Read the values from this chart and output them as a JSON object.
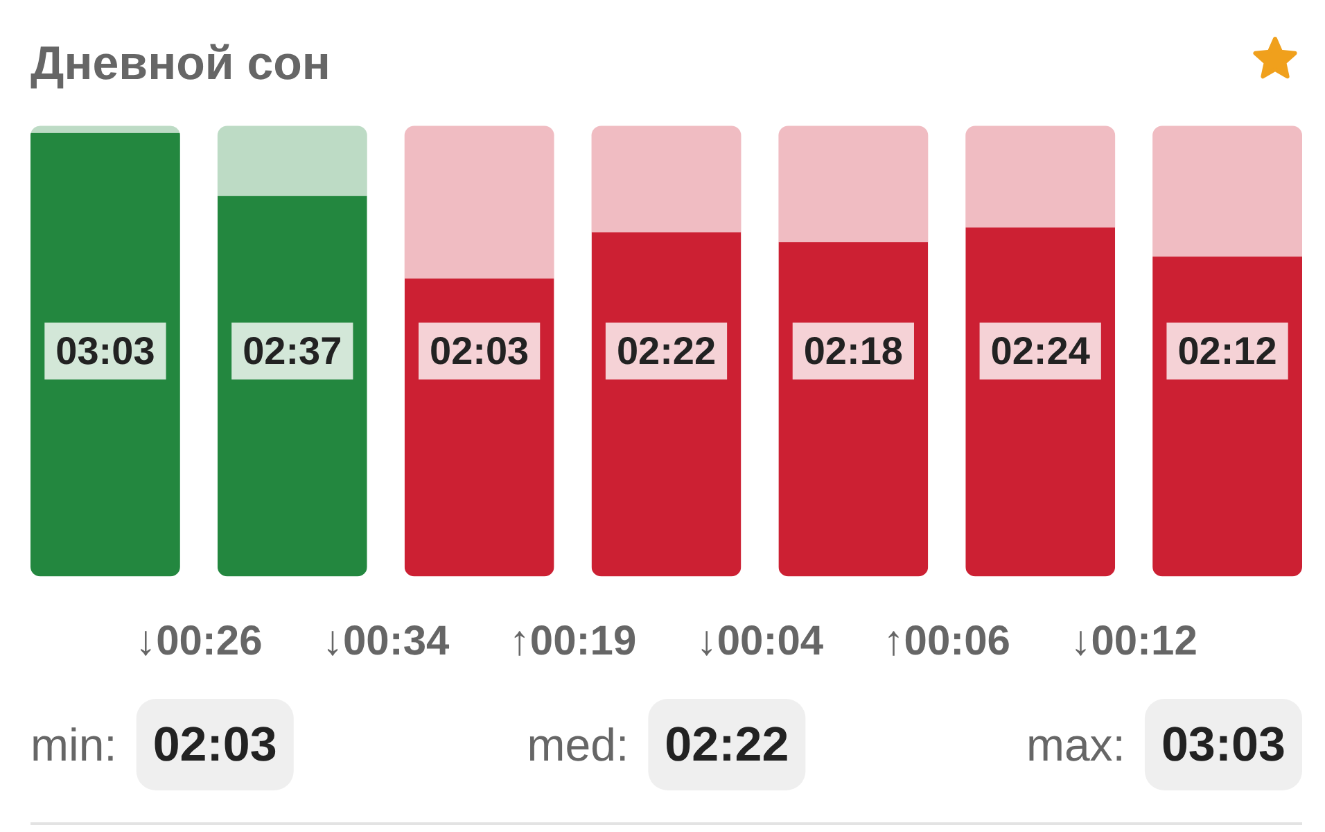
{
  "chart_data": {
    "type": "bar",
    "title": "Дневной сон",
    "categories": [
      null,
      null,
      null,
      null,
      null,
      null,
      null
    ],
    "values": [
      183,
      157,
      123,
      142,
      138,
      144,
      132
    ],
    "colors": [
      "#23873f",
      "#23873f",
      "#cc2033",
      "#cc2033",
      "#cc2033",
      "#cc2033",
      "#cc2033"
    ],
    "ylim": [
      0,
      186
    ],
    "value_labels": [
      "03:03",
      "02:37",
      "02:03",
      "02:22",
      "02:18",
      "02:24",
      "02:12"
    ],
    "annotations": [
      "↓00:26",
      "↓00:34",
      "↑00:19",
      "↓00:04",
      "↑00:06",
      "↓00:12",
      "min:",
      "02:03",
      "med:",
      "02:22",
      "max:",
      "03:03"
    ]
  }
}
